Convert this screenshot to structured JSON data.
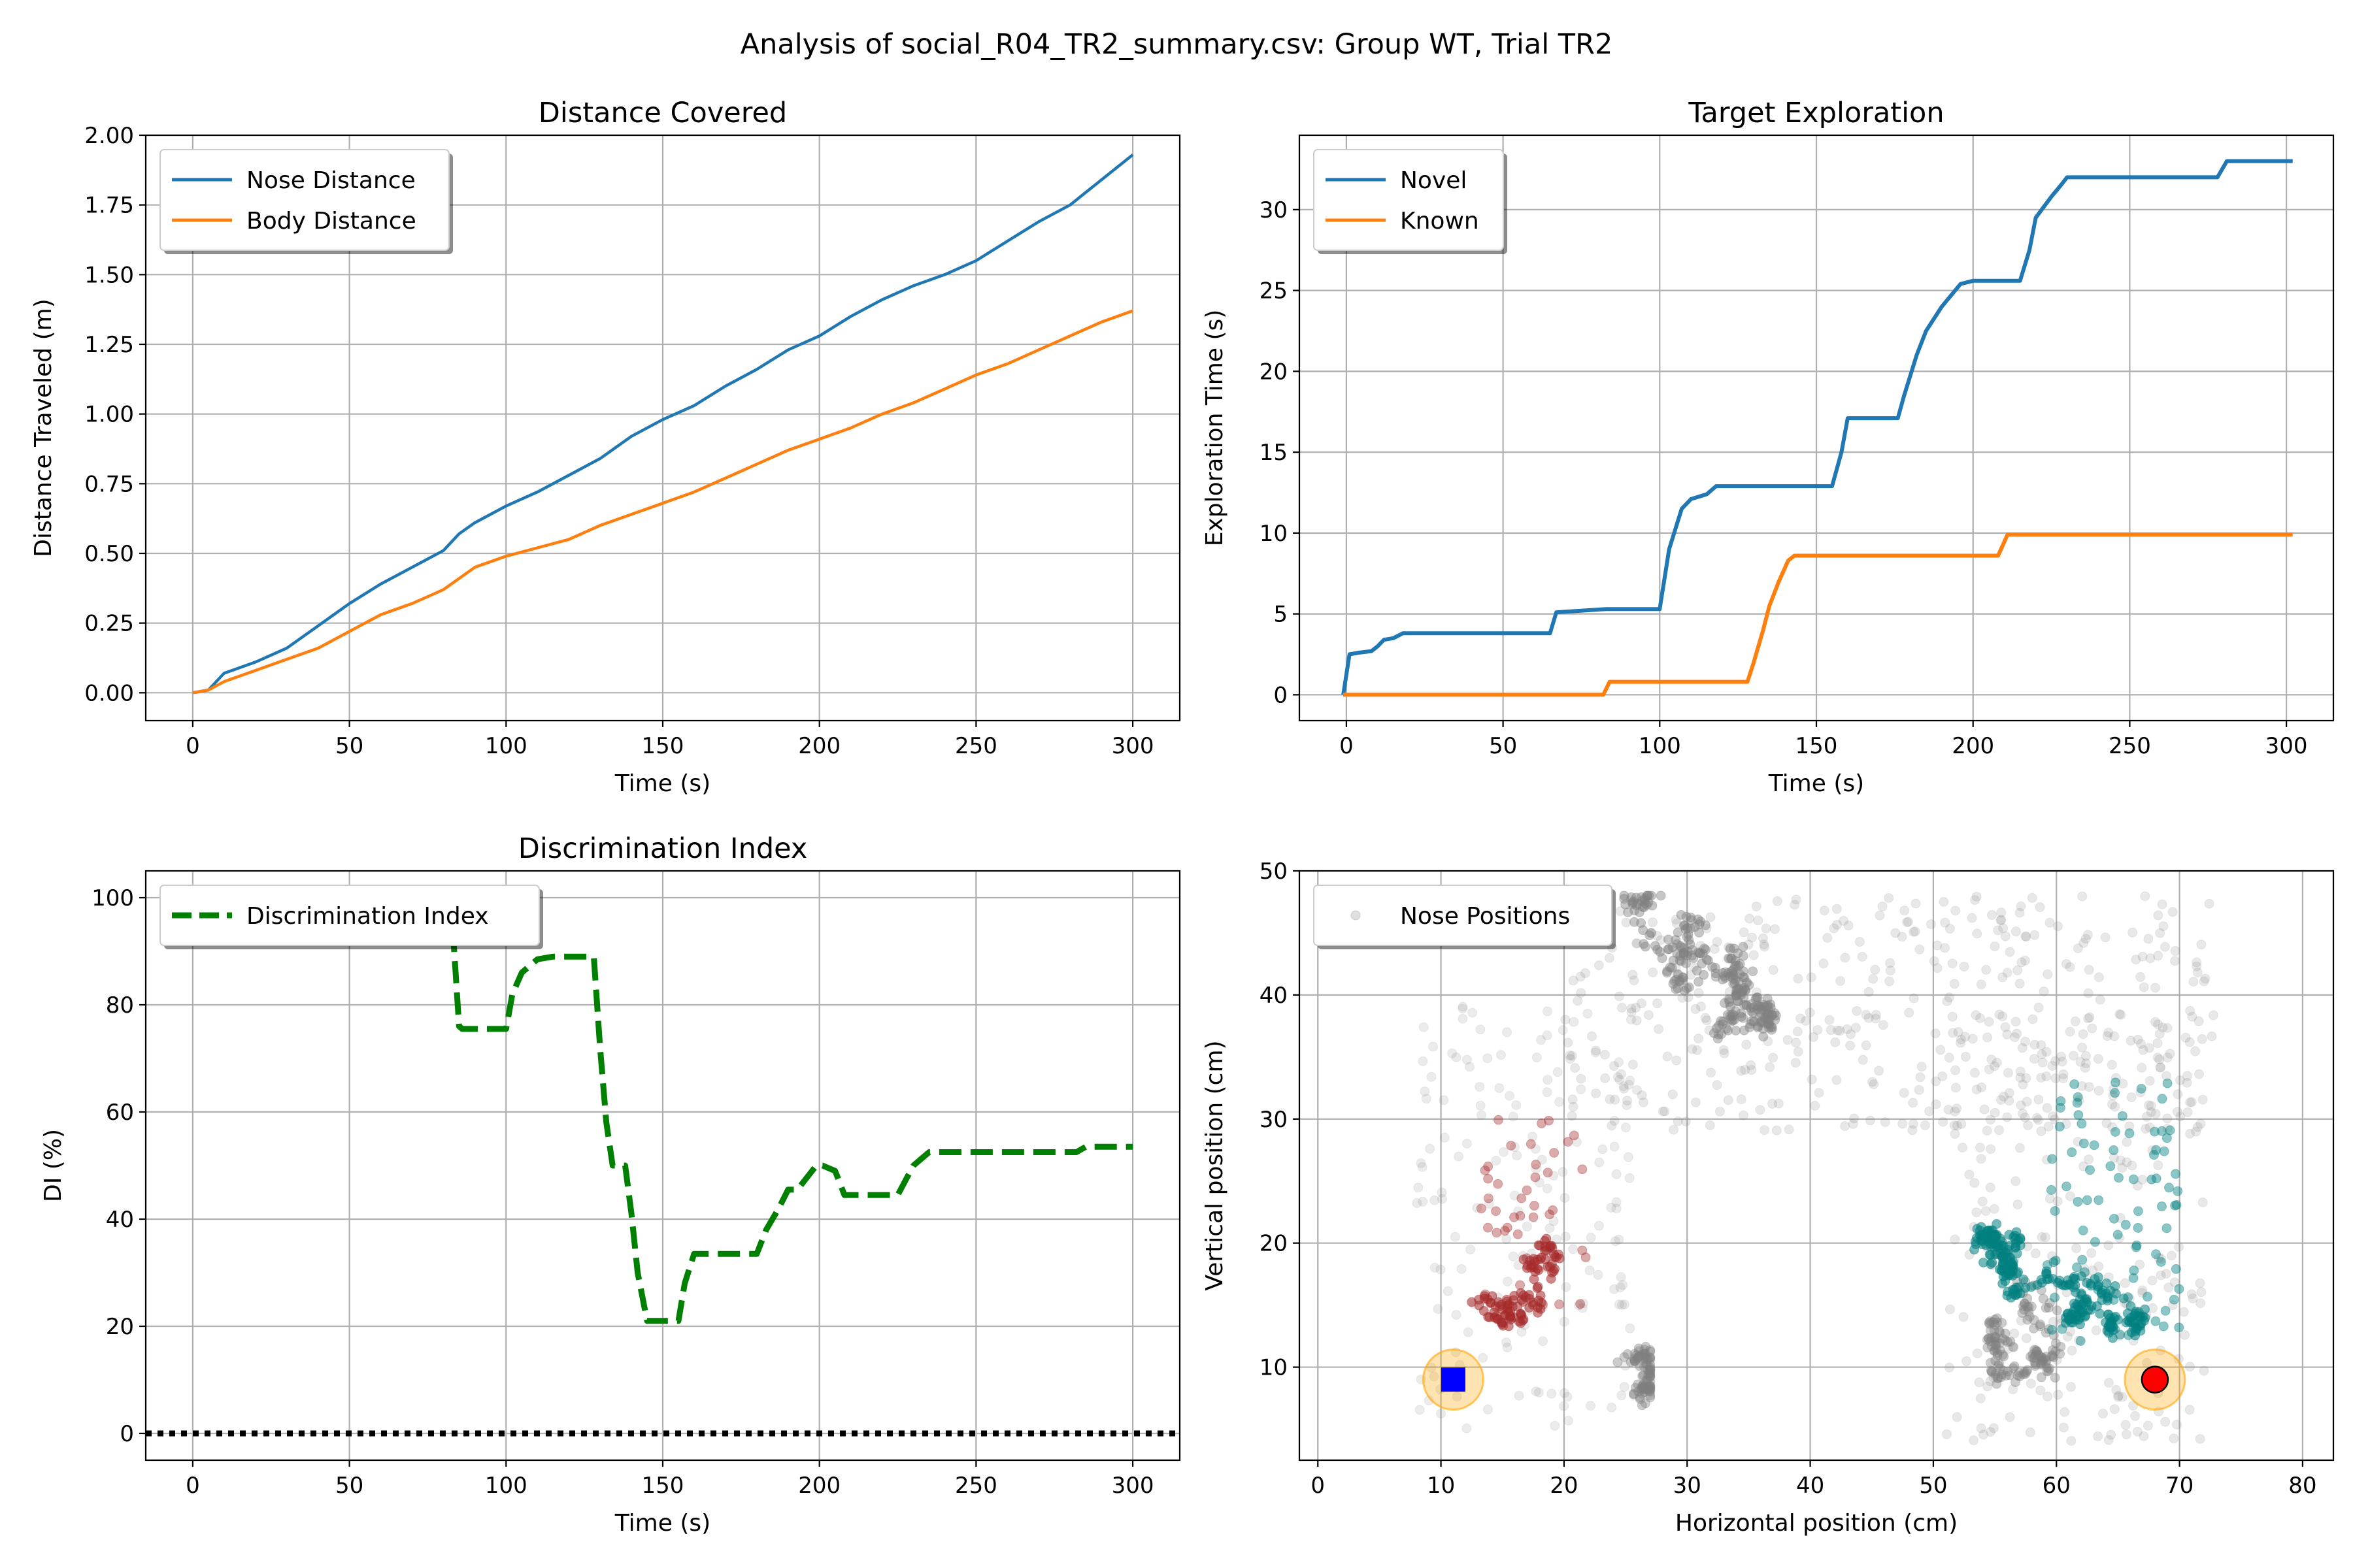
{
  "figure": {
    "suptitle": "Analysis of social_R04_TR2_summary.csv: Group WT, Trial TR2"
  },
  "chart_data": [
    {
      "type": "line",
      "title": "Distance Covered",
      "xlabel": "Time (s)",
      "ylabel": "Distance Traveled (m)",
      "xlim": [
        -15,
        315
      ],
      "ylim": [
        -0.1,
        2.0
      ],
      "xticks": [
        "0",
        "50",
        "100",
        "150",
        "200",
        "250",
        "300"
      ],
      "yticks": [
        "0.00",
        "0.25",
        "0.50",
        "0.75",
        "1.00",
        "1.25",
        "1.50",
        "1.75",
        "2.00"
      ],
      "grid": true,
      "legend_position": "top-left",
      "series": [
        {
          "name": "Nose Distance",
          "color": "#1f77b4",
          "x": [
            0,
            5,
            10,
            20,
            30,
            40,
            50,
            60,
            70,
            80,
            85,
            90,
            100,
            110,
            120,
            130,
            140,
            150,
            160,
            170,
            180,
            190,
            200,
            210,
            220,
            230,
            240,
            250,
            260,
            270,
            280,
            290,
            300
          ],
          "y": [
            0.0,
            0.01,
            0.07,
            0.11,
            0.16,
            0.24,
            0.32,
            0.39,
            0.45,
            0.51,
            0.57,
            0.61,
            0.67,
            0.72,
            0.78,
            0.84,
            0.92,
            0.98,
            1.03,
            1.1,
            1.16,
            1.23,
            1.28,
            1.35,
            1.41,
            1.46,
            1.5,
            1.55,
            1.62,
            1.69,
            1.75,
            1.84,
            1.93
          ]
        },
        {
          "name": "Body Distance",
          "color": "#ff7f0e",
          "x": [
            0,
            5,
            10,
            20,
            30,
            40,
            50,
            60,
            70,
            80,
            85,
            90,
            100,
            110,
            120,
            130,
            140,
            150,
            160,
            170,
            180,
            190,
            200,
            210,
            220,
            230,
            240,
            250,
            260,
            270,
            280,
            290,
            300
          ],
          "y": [
            0.0,
            0.01,
            0.04,
            0.08,
            0.12,
            0.16,
            0.22,
            0.28,
            0.32,
            0.37,
            0.41,
            0.45,
            0.49,
            0.52,
            0.55,
            0.6,
            0.64,
            0.68,
            0.72,
            0.77,
            0.82,
            0.87,
            0.91,
            0.95,
            1.0,
            1.04,
            1.09,
            1.14,
            1.18,
            1.23,
            1.28,
            1.33,
            1.37
          ]
        }
      ]
    },
    {
      "type": "line",
      "title": "Target Exploration",
      "xlabel": "Time (s)",
      "ylabel": "Exploration Time (s)",
      "xlim": [
        -15,
        315
      ],
      "ylim": [
        -1.6,
        34.6
      ],
      "xticks": [
        "0",
        "50",
        "100",
        "150",
        "200",
        "250",
        "300"
      ],
      "yticks": [
        "0",
        "5",
        "10",
        "15",
        "20",
        "25",
        "30"
      ],
      "grid": true,
      "legend_position": "top-left",
      "series": [
        {
          "name": "Novel",
          "color": "#1f77b4",
          "x": [
            -1,
            1,
            4,
            8,
            10,
            12,
            15,
            18,
            65,
            67,
            83,
            100,
            103,
            107,
            110,
            115,
            118,
            155,
            158,
            160,
            176,
            178,
            182,
            185,
            190,
            196,
            200,
            215,
            218,
            220,
            225,
            228,
            230,
            278,
            281,
            302
          ],
          "y": [
            0,
            2.5,
            2.6,
            2.7,
            3.0,
            3.4,
            3.5,
            3.8,
            3.8,
            5.1,
            5.3,
            5.3,
            9.0,
            11.5,
            12.1,
            12.4,
            12.9,
            12.9,
            15.0,
            17.1,
            17.1,
            18.5,
            21.0,
            22.5,
            24.0,
            25.4,
            25.6,
            25.6,
            27.5,
            29.5,
            30.8,
            31.5,
            32.0,
            32.0,
            33.0,
            33.0
          ]
        },
        {
          "name": "Known",
          "color": "#ff7f0e",
          "x": [
            -1,
            82,
            84,
            128,
            130,
            133,
            135,
            138,
            141,
            143,
            208,
            211,
            302
          ],
          "y": [
            0,
            0,
            0.8,
            0.8,
            2.0,
            4.0,
            5.5,
            7.0,
            8.3,
            8.6,
            8.6,
            9.9,
            9.9
          ]
        }
      ]
    },
    {
      "type": "line",
      "title": "Discrimination Index",
      "xlabel": "Time (s)",
      "ylabel": "DI (%)",
      "xlim": [
        -15,
        315
      ],
      "ylim": [
        -5,
        105
      ],
      "xticks": [
        "0",
        "50",
        "100",
        "150",
        "200",
        "250",
        "300"
      ],
      "yticks": [
        "0",
        "20",
        "40",
        "60",
        "80",
        "100"
      ],
      "grid": true,
      "legend_position": "top-left",
      "series": [
        {
          "name": "Discrimination Index",
          "color": "#008000",
          "style": "dashed",
          "x": [
            83,
            85,
            86,
            100,
            102,
            105,
            110,
            115,
            128,
            130,
            132,
            134,
            138,
            140,
            142,
            143,
            145,
            155,
            157,
            160,
            180,
            183,
            187,
            190,
            193,
            199,
            201,
            205,
            208,
            212,
            215,
            225,
            230,
            235,
            282,
            285,
            300
          ],
          "y": [
            94,
            76,
            75.5,
            75.5,
            82,
            86,
            88.5,
            89,
            89,
            72,
            58,
            50,
            50,
            41,
            30,
            27,
            21,
            21,
            28,
            33.5,
            33.5,
            38,
            42,
            45.5,
            45.5,
            50,
            50,
            49,
            44.5,
            44.5,
            44.5,
            44.5,
            50,
            52.5,
            52.5,
            53.5,
            53.5
          ]
        },
        {
          "name": "",
          "color": "#000000",
          "style": "dotted",
          "x": [
            -15,
            315
          ],
          "y": [
            0,
            0
          ]
        }
      ]
    },
    {
      "type": "scatter",
      "title": "",
      "xlabel": "Horizontal position (cm)",
      "ylabel": "Vertical position (cm)",
      "xlim": [
        -1.5,
        82.5
      ],
      "ylim": [
        2.5,
        50
      ],
      "xticks": [
        "0",
        "10",
        "20",
        "30",
        "40",
        "50",
        "60",
        "70",
        "80"
      ],
      "yticks": [
        "10",
        "20",
        "30",
        "40",
        "50"
      ],
      "grid": true,
      "legend_position": "top-left",
      "series": [
        {
          "name": "Nose Positions",
          "color": "#808080",
          "description_points": "gray nose-position trajectory over the arena"
        },
        {
          "name": "",
          "color": "#a52a2a",
          "description_points": "points near known object"
        },
        {
          "name": "",
          "color": "#008080",
          "description_points": "points near novel object"
        }
      ],
      "markers": [
        {
          "label": "",
          "shape": "square",
          "color": "#0000ff",
          "x": 11,
          "y": 9
        },
        {
          "label": "",
          "shape": "circle",
          "color": "#ff0000",
          "x": 68,
          "y": 9
        }
      ]
    }
  ]
}
